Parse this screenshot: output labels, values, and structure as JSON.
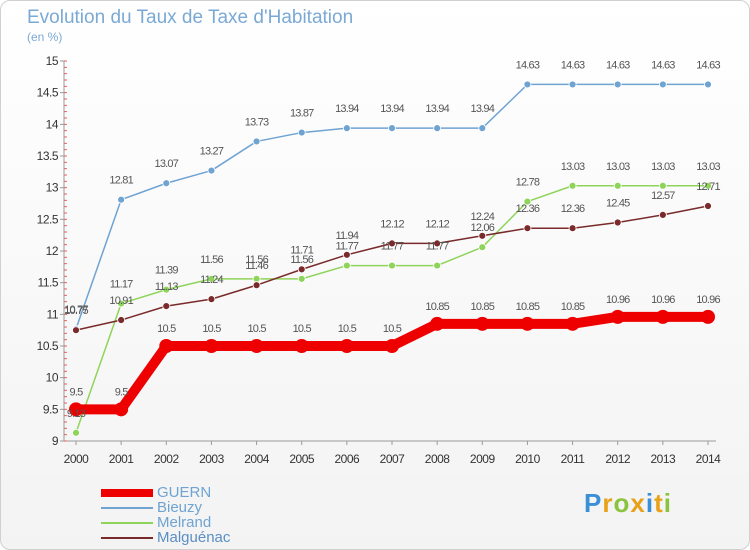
{
  "header": {
    "title": "Evolution du Taux de Taxe d'Habitation",
    "unit": "(en %)"
  },
  "logo": {
    "letters": [
      "P",
      "r",
      "o",
      "x",
      "i",
      "t",
      "i"
    ],
    "colors": [
      "#3a8fd6",
      "#e8a21a",
      "#8ac43f",
      "#e8a21a",
      "#3a8fd6",
      "#e8a21a",
      "#8ac43f"
    ]
  },
  "chart_data": {
    "type": "line",
    "x": [
      "2000",
      "2001",
      "2002",
      "2003",
      "2004",
      "2005",
      "2006",
      "2007",
      "2008",
      "2009",
      "2010",
      "2011",
      "2012",
      "2013",
      "2014"
    ],
    "ylim": [
      9,
      15
    ],
    "yticks": [
      "9",
      "9.5",
      "10",
      "10.5",
      "11",
      "11.5",
      "12",
      "12.5",
      "13",
      "13.5",
      "14",
      "14.5",
      "15"
    ],
    "grid": false,
    "legend_position": "bottom-left",
    "series": [
      {
        "name": "GUERN",
        "color": "#ee0000",
        "values": [
          9.5,
          9.5,
          10.5,
          10.5,
          10.5,
          10.5,
          10.5,
          10.5,
          10.85,
          10.85,
          10.85,
          10.85,
          10.96,
          10.96,
          10.96
        ],
        "labels": [
          "9.5",
          "9.5",
          "10.5",
          "10.5",
          "10.5",
          "10.5",
          "10.5",
          "10.5",
          "10.85",
          "10.85",
          "10.85",
          "10.85",
          "10.96",
          "10.96",
          "10.96"
        ]
      },
      {
        "name": "Bieuzy",
        "color": "#6fa3d2",
        "values": [
          10.77,
          12.81,
          13.07,
          13.27,
          13.73,
          13.87,
          13.94,
          13.94,
          13.94,
          13.94,
          14.63,
          14.63,
          14.63,
          14.63,
          14.63
        ],
        "labels": [
          "10.77",
          "12.81",
          "13.07",
          "13.27",
          "13.73",
          "13.87",
          "13.94",
          "13.94",
          "13.94",
          "13.94",
          "14.63",
          "14.63",
          "14.63",
          "14.63",
          "14.63"
        ]
      },
      {
        "name": "Melrand",
        "color": "#8ed45a",
        "values": [
          9.13,
          11.17,
          11.39,
          11.56,
          11.56,
          11.56,
          11.77,
          11.77,
          11.77,
          12.06,
          12.78,
          13.03,
          13.03,
          13.03,
          13.03
        ],
        "labels": [
          "9.13",
          "11.17",
          "11.39",
          "11.56",
          "11.56",
          "11.56",
          "11.77",
          "11.77",
          "11.77",
          "12.06",
          "12.78",
          "13.03",
          "13.03",
          "13.03",
          "13.03"
        ]
      },
      {
        "name": "Malguénac",
        "color": "#7a2a2a",
        "values": [
          10.75,
          10.91,
          11.13,
          11.24,
          11.46,
          11.71,
          11.94,
          12.12,
          12.12,
          12.24,
          12.36,
          12.36,
          12.45,
          12.57,
          12.71
        ],
        "labels": [
          "10.75",
          "10.91",
          "11.13",
          "11.24",
          "11.46",
          "11.71",
          "11.94",
          "12.12",
          "12.12",
          "12.24",
          "12.36",
          "12.36",
          "12.45",
          "12.57",
          "12.71"
        ]
      }
    ]
  }
}
